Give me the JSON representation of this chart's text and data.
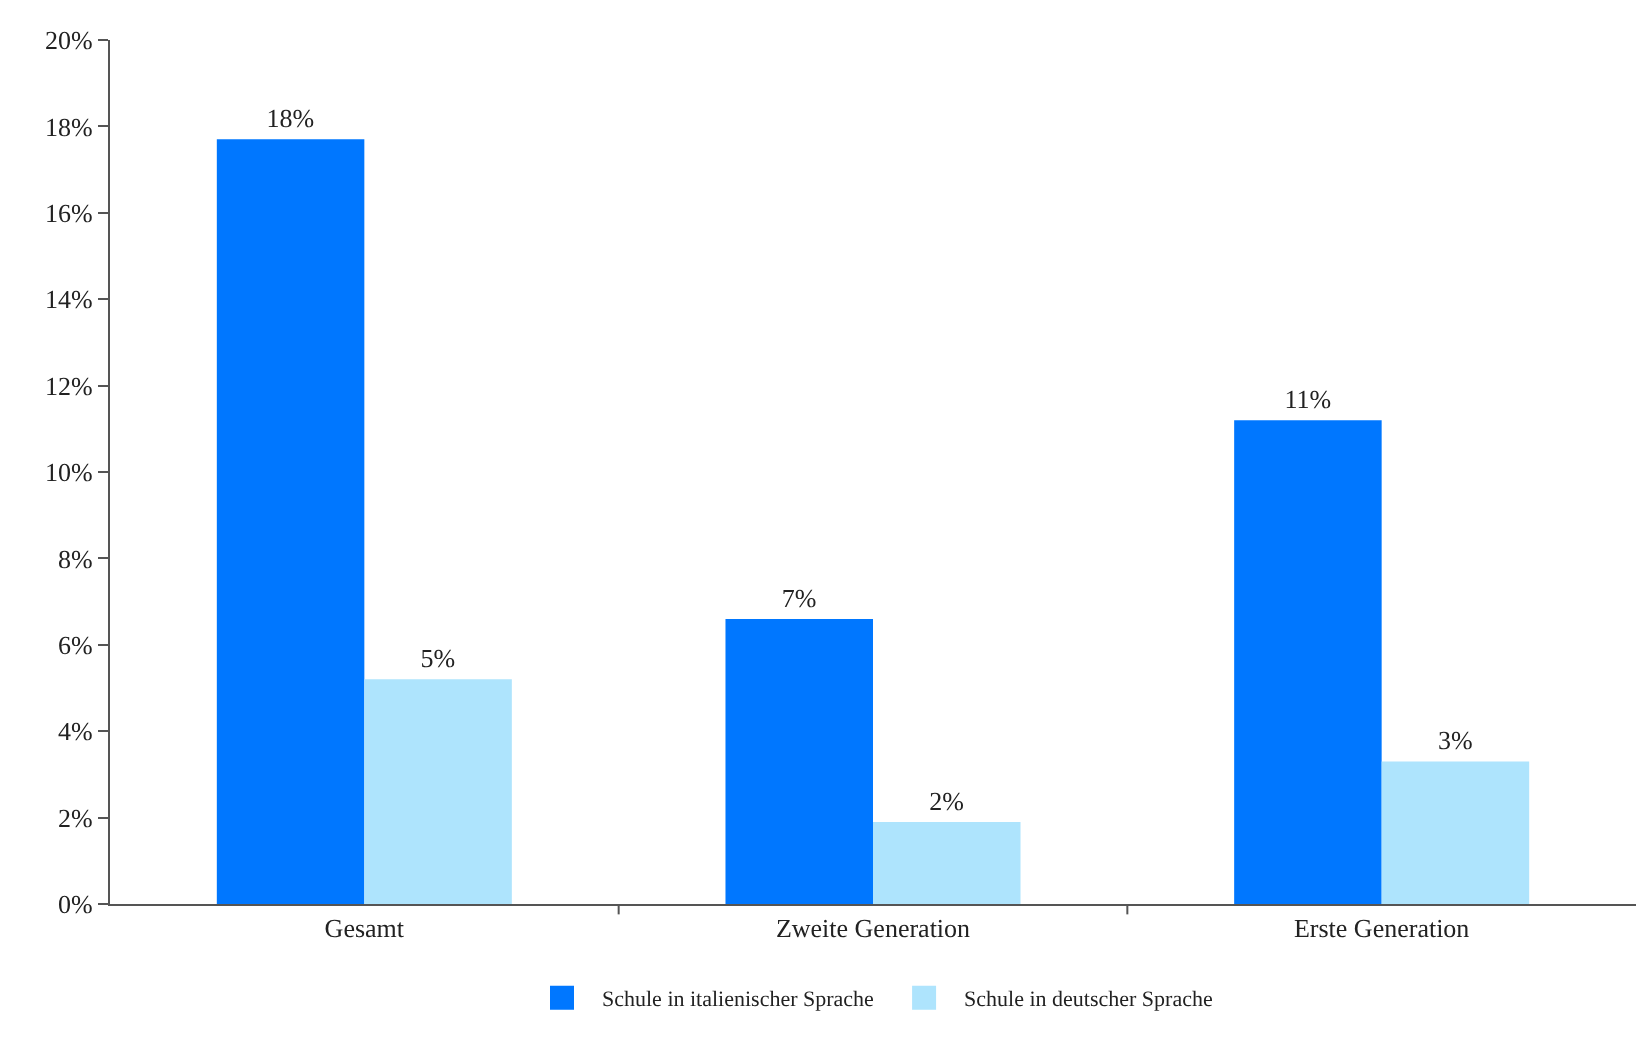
{
  "chart_data": {
    "type": "bar",
    "categories": [
      "Gesamt",
      "Zweite Generation",
      "Erste Generation"
    ],
    "series": [
      {
        "name": "Schule in italienischer Sprache",
        "color": "#0077ff",
        "values": [
          17.7,
          6.6,
          11.2
        ],
        "value_labels": [
          "18%",
          "7%",
          "11%"
        ]
      },
      {
        "name": "Schule in deutscher Sprache",
        "color": "#aee4fd",
        "values": [
          5.2,
          1.9,
          3.3
        ],
        "value_labels": [
          "5%",
          "2%",
          "3%"
        ]
      }
    ],
    "ylim": [
      0,
      20
    ],
    "yticks": [
      {
        "value": 0,
        "label": "0%"
      },
      {
        "value": 2,
        "label": "2%"
      },
      {
        "value": 4,
        "label": "4%"
      },
      {
        "value": 6,
        "label": "6%"
      },
      {
        "value": 8,
        "label": "8%"
      },
      {
        "value": 10,
        "label": "10%"
      },
      {
        "value": 12,
        "label": "12%"
      },
      {
        "value": 14,
        "label": "14%"
      },
      {
        "value": 16,
        "label": "16%"
      },
      {
        "value": 18,
        "label": "18%"
      },
      {
        "value": 20,
        "label": "20%"
      }
    ],
    "grid": false,
    "legend": "bottom"
  }
}
